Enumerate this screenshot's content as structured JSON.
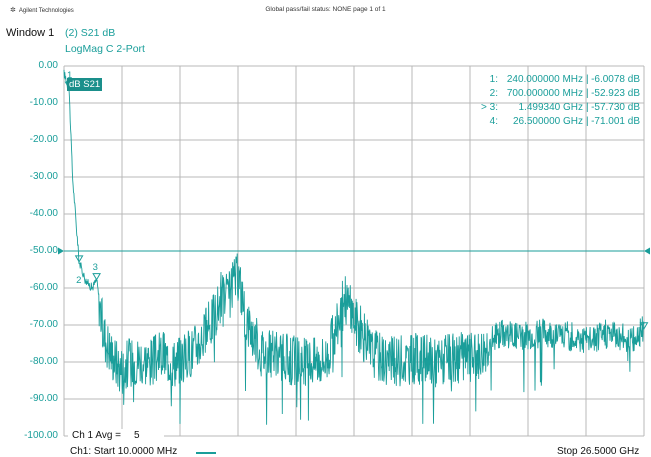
{
  "header": {
    "logo_text": "Agilent Technologies",
    "status_text": "Global pass/fail status: NONE  page 1 of 1"
  },
  "window": {
    "title": "Window 1",
    "trace_title": "(2) S21 dB",
    "format": "LogMag C 2-Port",
    "trace_badge": "dB S21"
  },
  "colors": {
    "trace": "#1a9e9a",
    "grid": "#b8b8b8",
    "badge": "#1a8f8b"
  },
  "y_axis": {
    "ticks": [
      "0.00",
      "-10.00",
      "-20.00",
      "-30.00",
      "-40.00",
      "-50.00",
      "-60.00",
      "-70.00",
      "-80.00",
      "-90.00",
      "-100.00"
    ],
    "reference_level": "-50.00"
  },
  "markers": [
    {
      "num": "1:",
      "active": false,
      "freq": "240.000000 MHz",
      "value": "-6.0078 dB",
      "label": "1"
    },
    {
      "num": "2:",
      "active": false,
      "freq": "700.000000 MHz",
      "value": "-52.923 dB",
      "label": "2"
    },
    {
      "num": "3:",
      "active": true,
      "freq": "1.499340 GHz",
      "value": "-57.730 dB",
      "label": "3"
    },
    {
      "num": "4:",
      "active": false,
      "freq": "26.500000 GHz",
      "value": "-71.001 dB",
      "label": "4"
    }
  ],
  "averaging": {
    "label": "Ch 1 Avg =",
    "count": "5"
  },
  "footer": {
    "start": "Ch1: Start  10.0000 MHz",
    "stop": "Stop  26.5000 GHz"
  },
  "chart_data": {
    "type": "line",
    "x_range_ghz": [
      0.01,
      26.5
    ],
    "ylim": [
      -100,
      0
    ],
    "y_units": "dB",
    "grid": true,
    "series": [
      {
        "name": "S21",
        "x_ghz": [
          0.01,
          0.24,
          0.4,
          0.7,
          1.0,
          1.3,
          1.5,
          1.8,
          2.2,
          2.6,
          3.0,
          3.5,
          4.0,
          4.5,
          5.0,
          5.5,
          6.0,
          6.5,
          7.0,
          7.2,
          7.5,
          7.8,
          8.0,
          8.3,
          9.0,
          10.0,
          11.0,
          12.0,
          12.5,
          12.8,
          13.2,
          13.6,
          14.0,
          15.0,
          16.0,
          17.0,
          18.0,
          19.0,
          19.5,
          20.0,
          21.0,
          22.0,
          23.0,
          24.0,
          25.0,
          26.0,
          26.5
        ],
        "y_db": [
          -2,
          -6,
          -30,
          -52.9,
          -58,
          -60,
          -57.7,
          -72,
          -78,
          -82,
          -80,
          -79,
          -80,
          -78,
          -80,
          -79,
          -76,
          -72,
          -66,
          -62,
          -63,
          -58,
          -57,
          -68,
          -77,
          -79,
          -80,
          -79,
          -70,
          -62,
          -67,
          -72,
          -77,
          -80,
          -79,
          -80,
          -79,
          -78,
          -74,
          -72,
          -73,
          -72,
          -73,
          -74,
          -72,
          -74,
          -71
        ]
      }
    ]
  }
}
